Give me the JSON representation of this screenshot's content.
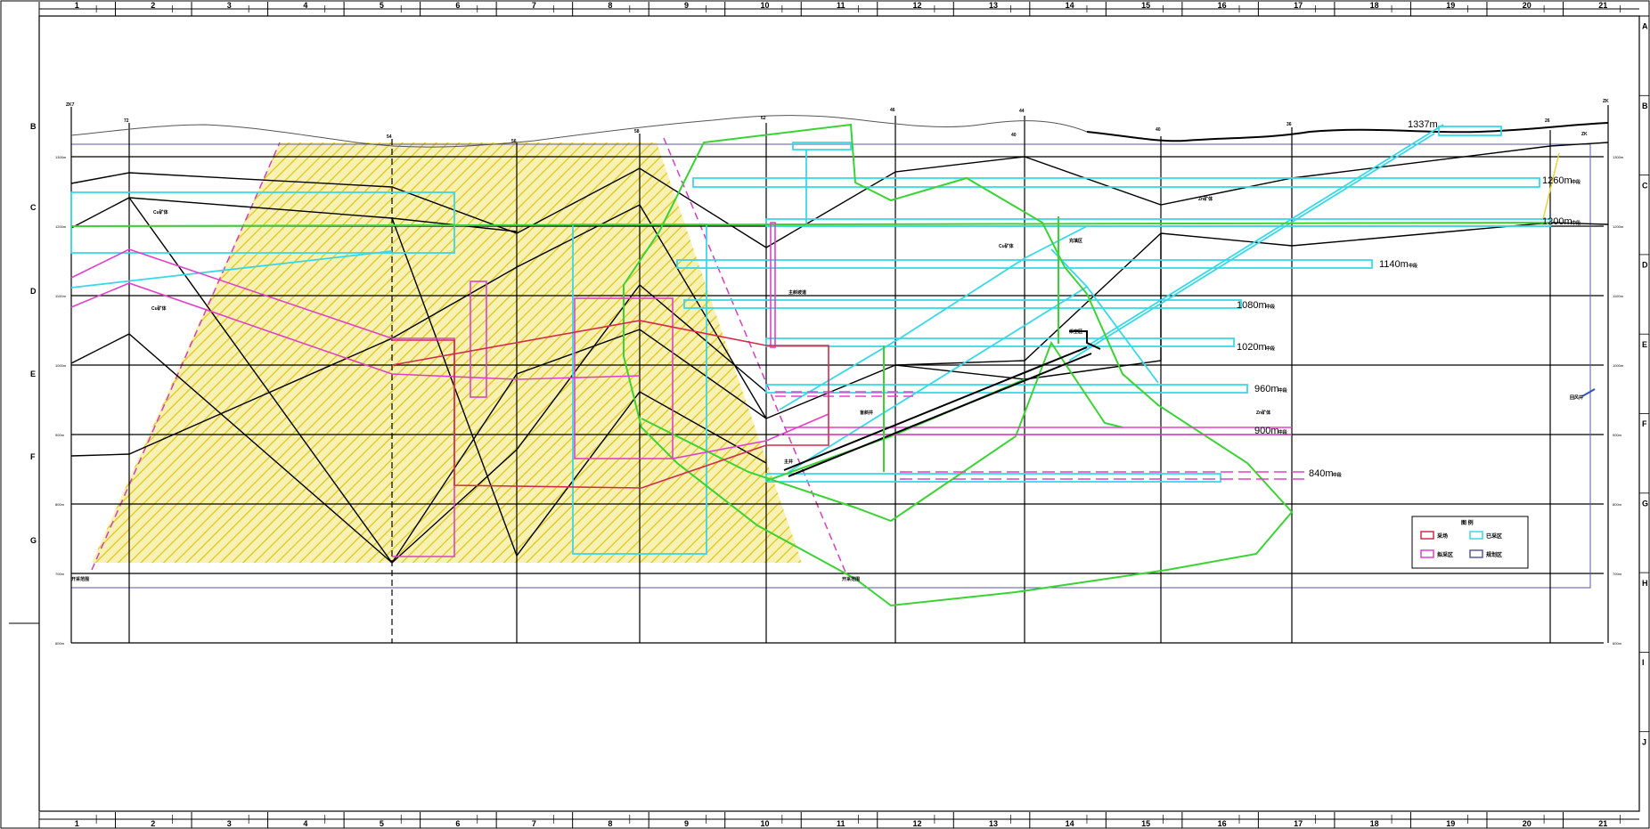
{
  "frame": {
    "top_columns": [
      "1",
      "2",
      "3",
      "4",
      "5",
      "6",
      "7",
      "8",
      "9",
      "10",
      "11",
      "12",
      "13",
      "14",
      "15",
      "16",
      "17",
      "18",
      "19",
      "20",
      "21"
    ],
    "bottom_columns": [
      "1",
      "2",
      "3",
      "4",
      "5",
      "6",
      "7",
      "8",
      "9",
      "10",
      "11",
      "12",
      "13",
      "14",
      "15",
      "16",
      "17",
      "18",
      "19",
      "20",
      "21"
    ],
    "left_rows": [
      "B",
      "C",
      "D",
      "E",
      "F",
      "G"
    ],
    "right_rows": [
      "A",
      "B",
      "C",
      "D",
      "E",
      "F",
      "G",
      "H",
      "I",
      "J"
    ]
  },
  "section": {
    "borehole_labels": [
      "ZK7",
      "72",
      "54",
      "56",
      "58",
      "62",
      "46",
      "44",
      "40",
      "36",
      "26",
      "ZK"
    ],
    "elevation_labels_left": [
      "1300m",
      "1200m",
      "1100m",
      "1000m",
      "900m",
      "800m",
      "700m",
      "600m"
    ],
    "elevation_labels_right": [
      "1300m",
      "1200m",
      "1100m",
      "1000m",
      "900m",
      "800m",
      "700m",
      "600m"
    ],
    "surface_label": "1337m",
    "levels": [
      {
        "label": "1260m",
        "suffix": "中段"
      },
      {
        "label": "1200m",
        "suffix": "中段"
      },
      {
        "label": "1140m",
        "suffix": "中段"
      },
      {
        "label": "1080m",
        "suffix": "中段"
      },
      {
        "label": "1020m",
        "suffix": "中段"
      },
      {
        "label": "960m",
        "suffix": "中段"
      },
      {
        "label": "900m",
        "suffix": "中段"
      },
      {
        "label": "840m",
        "suffix": "中段"
      }
    ],
    "small_notes": [
      "Cu矿体",
      "Cu矿体",
      "Zn矿体",
      "Cu矿体",
      "Zn矿体",
      "主斜坡道",
      "主井",
      "盲斜井",
      "充填区",
      "采空区",
      "开采范围",
      "开采范围",
      "回风井",
      "ZK",
      "40"
    ],
    "legend": {
      "title": "图 例",
      "items": [
        "采场",
        "已采区",
        "拟采区",
        "规划区"
      ]
    },
    "colors": {
      "hatch_fill": "#f5eeaa",
      "hatch_line": "#e8d23a",
      "cyan": "#38d8e8",
      "green": "#3bd334",
      "magenta": "#e040c8",
      "red": "#d42b4a",
      "navy": "#5a5aa6"
    }
  }
}
